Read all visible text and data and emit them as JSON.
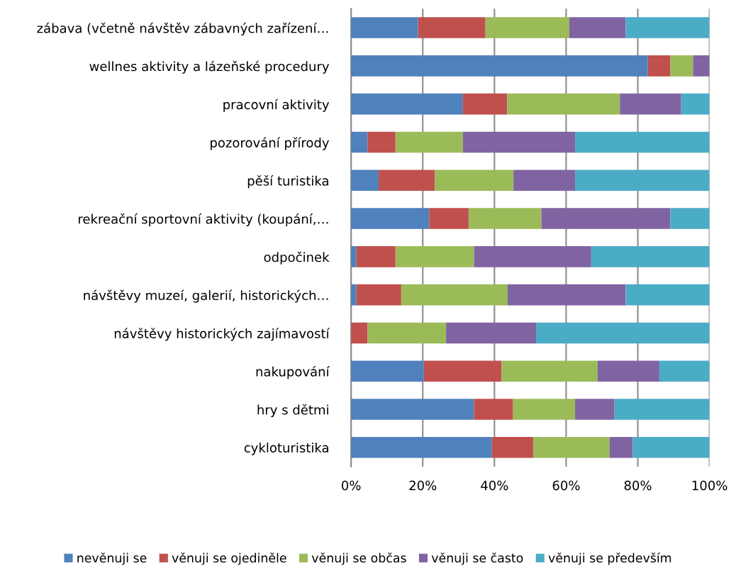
{
  "chart_data": {
    "type": "bar",
    "orientation": "horizontal",
    "stacked": true,
    "categories": [
      "zábava (včetně návštěv zábavných zařízení…",
      "wellnes aktivity a lázeňské procedury",
      "pracovní aktivity",
      "pozorování přírody",
      "pěší turistika",
      "rekreační sportovní aktivity (koupání,…",
      "odpočinek",
      "návštěvy muzeí, galerií, historických…",
      "návštěvy historických zajímavostí",
      "nakupování",
      "hry s dětmi",
      "cykloturistika"
    ],
    "series": [
      {
        "name": "nevěnuji se",
        "color": "#4f81bd",
        "values": [
          18.7,
          82.8,
          31.2,
          4.6,
          7.7,
          21.8,
          1.5,
          1.5,
          0,
          20.3,
          34.3,
          39.3
        ]
      },
      {
        "name": "věnuji se ojediněle",
        "color": "#c0504d",
        "values": [
          18.8,
          6.3,
          12.4,
          7.8,
          15.7,
          11.0,
          10.9,
          12.5,
          4.6,
          21.7,
          10.9,
          11.5
        ]
      },
      {
        "name": "věnuji se občas",
        "color": "#9bbb59",
        "values": [
          23.4,
          6.3,
          31.4,
          18.8,
          21.9,
          20.3,
          21.9,
          29.7,
          21.9,
          26.8,
          17.3,
          21.3
        ]
      },
      {
        "name": "věnuji se často",
        "color": "#8064a2",
        "values": [
          15.7,
          4.6,
          17.1,
          31.3,
          17.2,
          36.0,
          32.7,
          32.9,
          25.1,
          17.2,
          11.0,
          6.5
        ]
      },
      {
        "name": "věnuji se především",
        "color": "#4bacc6",
        "values": [
          23.4,
          0,
          7.9,
          37.5,
          37.5,
          10.9,
          33.0,
          23.4,
          48.4,
          14.0,
          26.5,
          21.4
        ]
      }
    ],
    "xlim": [
      0,
      100
    ],
    "xticks": [
      {
        "value": 0,
        "label": "0%"
      },
      {
        "value": 20,
        "label": "20%"
      },
      {
        "value": 40,
        "label": "40%"
      },
      {
        "value": 60,
        "label": "60%"
      },
      {
        "value": 80,
        "label": "80%"
      },
      {
        "value": 100,
        "label": "100%"
      }
    ],
    "grid": "x",
    "legend": "bottom"
  }
}
